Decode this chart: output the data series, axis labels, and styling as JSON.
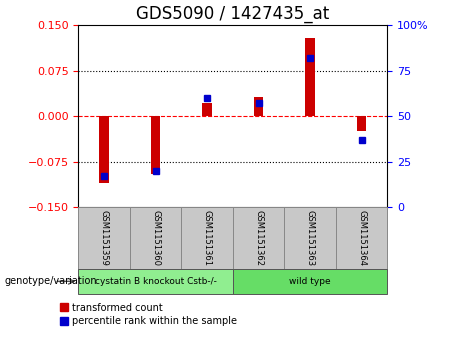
{
  "title": "GDS5090 / 1427435_at",
  "samples": [
    "GSM1151359",
    "GSM1151360",
    "GSM1151361",
    "GSM1151362",
    "GSM1151363",
    "GSM1151364"
  ],
  "red_values": [
    -0.11,
    -0.095,
    0.022,
    0.032,
    0.13,
    -0.025
  ],
  "blue_percentiles": [
    17,
    20,
    60,
    57,
    82,
    37
  ],
  "ylim_left": [
    -0.15,
    0.15
  ],
  "ylim_right": [
    0,
    100
  ],
  "yticks_left": [
    -0.15,
    -0.075,
    0,
    0.075,
    0.15
  ],
  "yticks_right": [
    0,
    25,
    50,
    75,
    100
  ],
  "hlines_dotted": [
    -0.075,
    0.075
  ],
  "group_labels": [
    "cystatin B knockout Cstb-/-",
    "wild type"
  ],
  "group_col1": "#90EE90",
  "group_col2": "#66CC66",
  "bar_color": "#CC0000",
  "dot_color": "#0000CC",
  "legend_red_label": "transformed count",
  "legend_blue_label": "percentile rank within the sample",
  "genotype_label": "genotype/variation",
  "title_fontsize": 12,
  "tick_fontsize": 8,
  "label_fontsize": 7,
  "bar_width": 0.18
}
